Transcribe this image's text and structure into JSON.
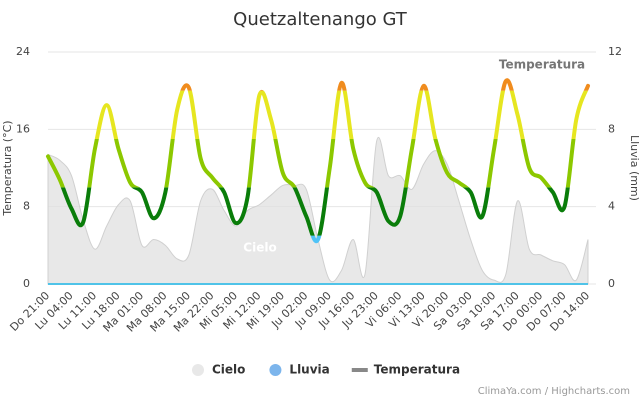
{
  "chart_data": {
    "type": "line",
    "title": "Quetzaltenango GT",
    "y_axis_label": "Temperatura (°C)",
    "y2_axis_label": "Lluvia (mm)",
    "annotations": [
      "Cielo",
      "Temperatura"
    ],
    "credits": "ClimaYa.com / Highcharts.com",
    "categories": [
      "Do 21:00",
      null,
      "Lu 04:00",
      null,
      "Lu 11:00",
      null,
      "Lu 18:00",
      null,
      "Ma 01:00",
      null,
      "Ma 08:00",
      null,
      "Ma 15:00",
      null,
      "Ma 22:00",
      null,
      "Mi 05:00",
      null,
      "Mi 12:00",
      null,
      "Mi 19:00",
      null,
      "Ju 02:00",
      null,
      "Ju 09:00",
      null,
      "Ju 16:00",
      null,
      "Ju 23:00",
      null,
      "Vi 06:00",
      null,
      "Vi 13:00",
      null,
      "Vi 20:00",
      null,
      "Sa 03:00",
      null,
      "Sa 10:00",
      null,
      "Sa 17:00",
      null,
      "Do 00:00",
      null,
      "Do 07:00",
      null,
      "Do 14:00"
    ],
    "series": [
      {
        "name": "Cielo",
        "type": "area",
        "axis": "y2",
        "color": "#e0e0e0",
        "values": [
          6.7,
          6.4,
          5.6,
          3.3,
          1.8,
          3,
          4.1,
          4.3,
          2,
          2.3,
          2,
          1.3,
          1.5,
          4.3,
          4.9,
          3.8,
          3,
          3.8,
          4.1,
          4.6,
          5.1,
          5.1,
          4.9,
          2.3,
          0.2,
          0.7,
          2.3,
          0.5,
          7.4,
          5.6,
          5.6,
          4.9,
          6.2,
          6.9,
          6.2,
          4.3,
          2.3,
          0.7,
          0.2,
          0.5,
          4.3,
          1.8,
          1.5,
          1.2,
          1,
          0.2,
          2.3
        ]
      },
      {
        "name": "Lluvia",
        "type": "line",
        "axis": "y2",
        "color": "#4fc3e8",
        "values": [
          0,
          0,
          0,
          0,
          0,
          0,
          0,
          0,
          0,
          0,
          0,
          0,
          0,
          0,
          0,
          0,
          0,
          0,
          0,
          0,
          0,
          0,
          0,
          0,
          0,
          0,
          0,
          0,
          0,
          0,
          0,
          0,
          0,
          0,
          0,
          0,
          0,
          0,
          0,
          0,
          0,
          0,
          0,
          0,
          0,
          0,
          0
        ]
      },
      {
        "name": "Temperatura",
        "type": "spline",
        "color": "#888888",
        "zones": [
          {
            "value": 5,
            "color": "#4fc3f7"
          },
          {
            "value": 10,
            "color": "#0a7d0a"
          },
          {
            "value": 15,
            "color": "#8cc800"
          },
          {
            "value": 20,
            "color": "#e6e620"
          },
          {
            "color": "#f08c1e"
          }
        ],
        "values": [
          13.2,
          10.8,
          7.8,
          6.4,
          14,
          18.5,
          14,
          10.5,
          9.5,
          6.8,
          9.5,
          18,
          20.3,
          13,
          11,
          9.5,
          6.3,
          9,
          19.5,
          17,
          11.5,
          10,
          7,
          4.6,
          12,
          20.8,
          14,
          10.5,
          9.5,
          6.5,
          7,
          14,
          20.5,
          15,
          11.5,
          10.5,
          9.5,
          7,
          14,
          21,
          17.5,
          12,
          11,
          9.5,
          8,
          17,
          20.5
        ]
      }
    ],
    "ylim": [
      0,
      24
    ],
    "yticks": [
      0,
      8,
      16,
      24
    ],
    "y2lim": [
      0,
      12
    ],
    "y2ticks": [
      0,
      4,
      8,
      12
    ],
    "grid": true,
    "legend": "bottom"
  }
}
